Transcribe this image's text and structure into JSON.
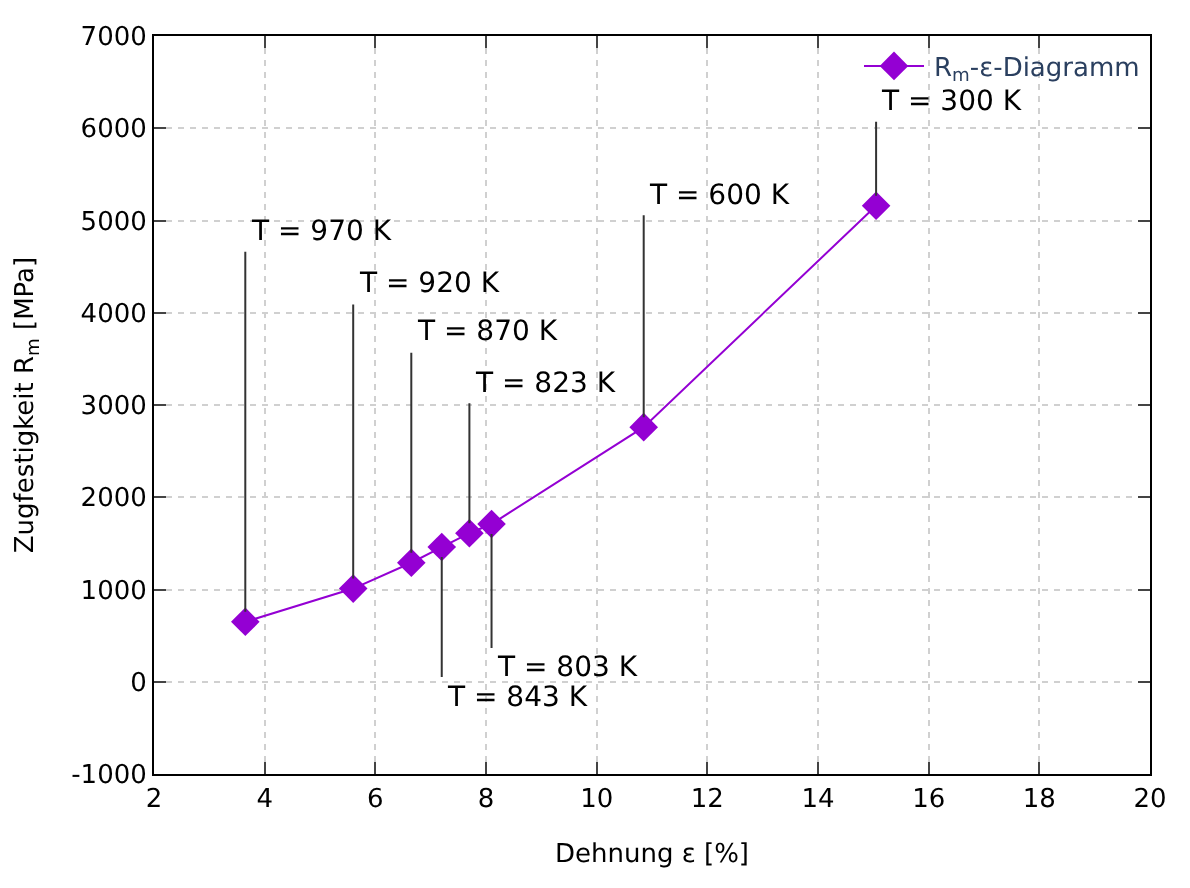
{
  "chart_data": {
    "type": "line",
    "xlabel": "Dehnung ε [%]",
    "ylabel": "Zugfestigkeit R$_{m}$ [MPa]",
    "x": [
      3.65,
      5.6,
      6.65,
      7.2,
      7.7,
      8.1,
      10.85,
      15.05
    ],
    "series": [
      {
        "name": "R$_{m}$-ε-Diagramm",
        "color": "#9400d3",
        "values": [
          650,
          1010,
          1290,
          1460,
          1610,
          1710,
          2760,
          5160
        ]
      }
    ],
    "xlim": [
      2,
      20
    ],
    "xticks": [
      2,
      4,
      6,
      8,
      10,
      12,
      14,
      16,
      18,
      20
    ],
    "ylim": [
      -1000,
      7000
    ],
    "yticks": [
      -1000,
      0,
      1000,
      2000,
      3000,
      4000,
      5000,
      6000,
      7000
    ],
    "annotations": [
      {
        "text": "T = 970 K",
        "x": 3.65,
        "y": 650
      },
      {
        "text": "T = 920 K",
        "x": 5.6,
        "y": 1010
      },
      {
        "text": "T = 870 K",
        "x": 6.65,
        "y": 1290
      },
      {
        "text": "T = 843 K",
        "x": 7.2,
        "y": 1460
      },
      {
        "text": "T = 823 K",
        "x": 7.7,
        "y": 1610
      },
      {
        "text": "T = 803 K",
        "x": 8.1,
        "y": 1710
      },
      {
        "text": "T = 600 K",
        "x": 10.85,
        "y": 2760
      },
      {
        "text": "T = 300 K",
        "x": 15.05,
        "y": 5160
      }
    ],
    "grid": true,
    "legend": "top right",
    "marker": "diamond",
    "line_style": "solid"
  }
}
